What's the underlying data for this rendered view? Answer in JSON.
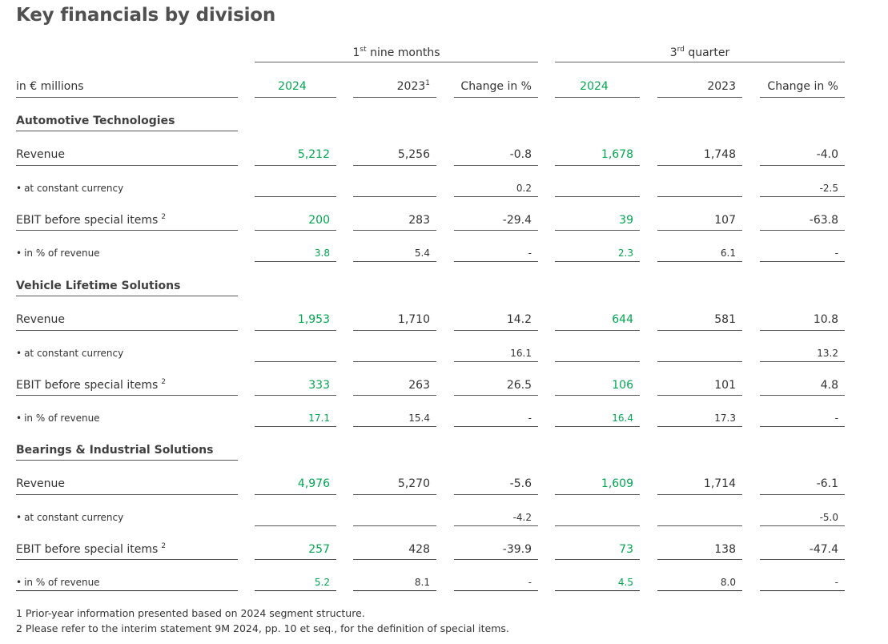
{
  "title": "Key financials by division",
  "groups": [
    {
      "base": "1",
      "sup": "st",
      "rest": " nine months"
    },
    {
      "base": "3",
      "sup": "rd",
      "rest": " quarter"
    }
  ],
  "header": {
    "unit": "in € millions",
    "columns": [
      {
        "label": "2024",
        "sup": ""
      },
      {
        "label": "2023",
        "sup": "1"
      },
      {
        "label": "Change in %",
        "sup": ""
      },
      {
        "label": "2024",
        "sup": ""
      },
      {
        "label": "2023",
        "sup": ""
      },
      {
        "label": "Change in %",
        "sup": ""
      }
    ]
  },
  "sections": [
    {
      "name": "Automotive Technologies",
      "rows": [
        {
          "label": "Revenue",
          "sup": "",
          "values": [
            "5,212",
            "5,256",
            "-0.8",
            "1,678",
            "1,748",
            "-4.0"
          ]
        },
        {
          "label": "at constant currency",
          "sup": "",
          "values": [
            "",
            "",
            "0.2",
            "",
            "",
            "-2.5"
          ]
        },
        {
          "label": "EBIT before special items",
          "sup": "2",
          "values": [
            "200",
            "283",
            "-29.4",
            "39",
            "107",
            "-63.8"
          ]
        },
        {
          "label": "in % of revenue",
          "sup": "",
          "values": [
            "3.8",
            "5.4",
            "-",
            "2.3",
            "6.1",
            "-"
          ]
        }
      ]
    },
    {
      "name": "Vehicle Lifetime Solutions",
      "rows": [
        {
          "label": "Revenue",
          "sup": "",
          "values": [
            "1,953",
            "1,710",
            "14.2",
            "644",
            "581",
            "10.8"
          ]
        },
        {
          "label": "at constant currency",
          "sup": "",
          "values": [
            "",
            "",
            "16.1",
            "",
            "",
            "13.2"
          ]
        },
        {
          "label": "EBIT before special items",
          "sup": "2",
          "values": [
            "333",
            "263",
            "26.5",
            "106",
            "101",
            "4.8"
          ]
        },
        {
          "label": "in % of revenue",
          "sup": "",
          "values": [
            "17.1",
            "15.4",
            "-",
            "16.4",
            "17.3",
            "-"
          ]
        }
      ]
    },
    {
      "name": "Bearings & Industrial Solutions",
      "rows": [
        {
          "label": "Revenue",
          "sup": "",
          "values": [
            "4,976",
            "5,270",
            "-5.6",
            "1,609",
            "1,714",
            "-6.1"
          ]
        },
        {
          "label": "at constant currency",
          "sup": "",
          "values": [
            "",
            "",
            "-4.2",
            "",
            "",
            "-5.0"
          ]
        },
        {
          "label": "EBIT before special items",
          "sup": "2",
          "values": [
            "257",
            "428",
            "-39.9",
            "73",
            "138",
            "-47.4"
          ]
        },
        {
          "label": "in % of revenue",
          "sup": "",
          "values": [
            "5.2",
            "8.1",
            "-",
            "4.5",
            "8.0",
            "-"
          ]
        }
      ]
    }
  ],
  "footnotes": [
    "1 Prior-year information presented based on 2024 segment structure.",
    "2 Please refer to the interim statement 9M 2024, pp. 10 et seq., for the definition of special items."
  ],
  "colors": {
    "current_year": "#00a650",
    "text": "#333333"
  }
}
